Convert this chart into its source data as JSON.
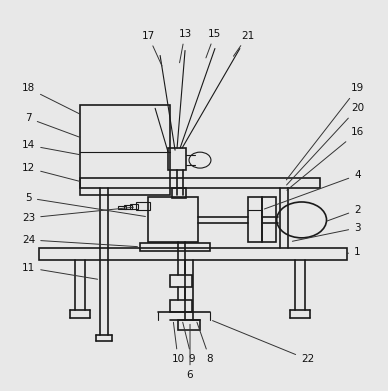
{
  "background_color": "#e8e8e8",
  "line_color": "#1a1a1a",
  "lw": 1.2,
  "tlw": 0.8,
  "fs": 7.5,
  "label_color": "#111111",
  "leader_color": "#333333"
}
